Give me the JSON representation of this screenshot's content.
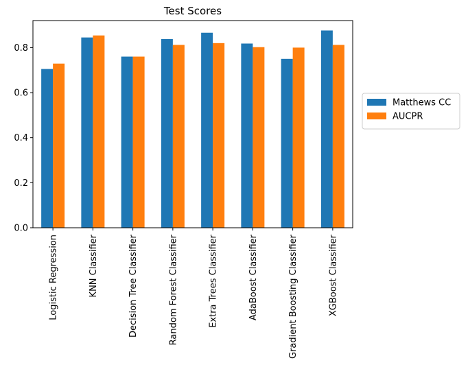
{
  "chart_data": {
    "type": "bar",
    "title": "Test Scores",
    "xlabel": "",
    "ylabel": "",
    "categories": [
      "Logistic Regression",
      "KNN Classifier",
      "Decision Tree Classifier",
      "Random Forest Classifier",
      "Extra Trees Classifier",
      "AdaBoost Classifier",
      "Gradient Boosting Classifier",
      "XGBoost Classifier"
    ],
    "series": [
      {
        "name": "Matthews CC",
        "color": "#1f77b4",
        "values": [
          0.705,
          0.845,
          0.76,
          0.838,
          0.866,
          0.818,
          0.75,
          0.876
        ]
      },
      {
        "name": "AUCPR",
        "color": "#ff7f0e",
        "values": [
          0.729,
          0.854,
          0.76,
          0.812,
          0.82,
          0.802,
          0.8,
          0.812
        ]
      }
    ],
    "ylim": [
      0,
      0.92
    ],
    "yticks": [
      0.0,
      0.2,
      0.4,
      0.6,
      0.8
    ],
    "ytick_labels": [
      "0.0",
      "0.2",
      "0.4",
      "0.6",
      "0.8"
    ],
    "grid": false,
    "legend_position": "outside-right"
  }
}
